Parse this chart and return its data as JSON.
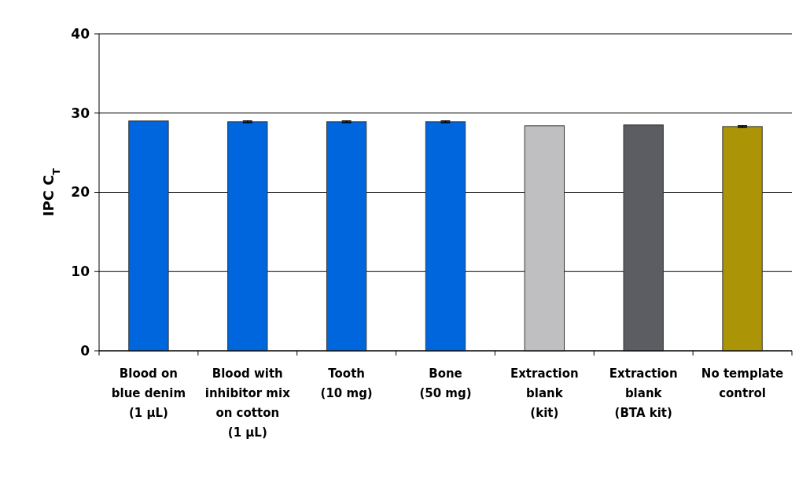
{
  "chart_data": {
    "type": "bar",
    "ylabel": "IPC C$_{T}$",
    "categories": [
      "Blood on\nblue denim\n(1 µL)",
      "Blood with\ninhibitor mix\non cotton\n(1 µL)",
      "Tooth\n(10 mg)",
      "Bone\n(50 mg)",
      "Extraction\nblank\n(kit)",
      "Extraction\nblank\n(BTA kit)",
      "No template\ncontrol"
    ],
    "values": [
      29.0,
      28.9,
      28.9,
      28.9,
      28.4,
      28.5,
      28.3
    ],
    "colors": [
      "#0066dd",
      "#0066dd",
      "#0066dd",
      "#0066dd",
      "#bfbfc1",
      "#5c5d62",
      "#ab9507"
    ],
    "errors": [
      null,
      0.1,
      0.1,
      0.1,
      null,
      null,
      0.1
    ],
    "ylim": [
      0,
      40
    ],
    "yticks": [
      0,
      10,
      20,
      30,
      40
    ],
    "grid": "y"
  }
}
